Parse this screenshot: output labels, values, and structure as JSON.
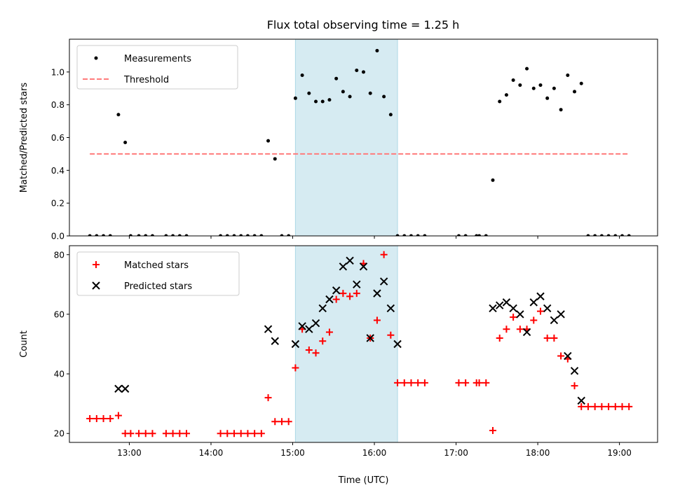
{
  "title": "Flux total observing time = 1.25 h",
  "colors": {
    "measurements": "#000000",
    "threshold": "#ff7b7b",
    "matched": "#ff0000",
    "predicted": "#000000",
    "highlight": "#add8e6"
  },
  "chart_data": [
    {
      "type": "scatter",
      "ylabel": "Matched/Predicted stars",
      "xlim": [
        "12:16",
        "19:28"
      ],
      "ylim": [
        0,
        1.2
      ],
      "y_ticks": [
        "0.0",
        "0.2",
        "0.4",
        "0.6",
        "0.8",
        "1.0"
      ],
      "grid": false,
      "legend_position": "upper left",
      "highlight_band": {
        "start": "15:02",
        "end": "16:17"
      },
      "series": [
        {
          "name": "Measurements",
          "marker": "dot",
          "points": [
            [
              "12:31",
              0.0
            ],
            [
              "12:36",
              0.0
            ],
            [
              "12:41",
              0.0
            ],
            [
              "12:46",
              0.0
            ],
            [
              "12:52",
              0.74
            ],
            [
              "12:57",
              0.57
            ],
            [
              "13:01",
              0.0
            ],
            [
              "13:07",
              0.0
            ],
            [
              "13:12",
              0.0
            ],
            [
              "13:17",
              0.0
            ],
            [
              "13:27",
              0.0
            ],
            [
              "13:32",
              0.0
            ],
            [
              "13:37",
              0.0
            ],
            [
              "13:42",
              0.0
            ],
            [
              "14:07",
              0.0
            ],
            [
              "14:12",
              0.0
            ],
            [
              "14:17",
              0.0
            ],
            [
              "14:22",
              0.0
            ],
            [
              "14:27",
              0.0
            ],
            [
              "14:32",
              0.0
            ],
            [
              "14:37",
              0.0
            ],
            [
              "14:42",
              0.58
            ],
            [
              "14:47",
              0.47
            ],
            [
              "14:52",
              0.0
            ],
            [
              "14:57",
              0.0
            ],
            [
              "15:02",
              0.84
            ],
            [
              "15:07",
              0.98
            ],
            [
              "15:12",
              0.87
            ],
            [
              "15:17",
              0.82
            ],
            [
              "15:22",
              0.82
            ],
            [
              "15:27",
              0.83
            ],
            [
              "15:32",
              0.96
            ],
            [
              "15:37",
              0.88
            ],
            [
              "15:42",
              0.85
            ],
            [
              "15:47",
              1.01
            ],
            [
              "15:52",
              1.0
            ],
            [
              "15:57",
              0.87
            ],
            [
              "16:02",
              1.13
            ],
            [
              "16:07",
              0.85
            ],
            [
              "16:12",
              0.74
            ],
            [
              "16:17",
              0.0
            ],
            [
              "16:22",
              0.0
            ],
            [
              "16:27",
              0.0
            ],
            [
              "16:32",
              0.0
            ],
            [
              "16:37",
              0.0
            ],
            [
              "17:02",
              0.0
            ],
            [
              "17:07",
              0.0
            ],
            [
              "17:15",
              0.0
            ],
            [
              "17:17",
              0.0
            ],
            [
              "17:22",
              0.0
            ],
            [
              "17:27",
              0.34
            ],
            [
              "17:32",
              0.82
            ],
            [
              "17:37",
              0.86
            ],
            [
              "17:42",
              0.95
            ],
            [
              "17:47",
              0.92
            ],
            [
              "17:52",
              1.02
            ],
            [
              "17:57",
              0.9
            ],
            [
              "18:02",
              0.92
            ],
            [
              "18:07",
              0.84
            ],
            [
              "18:12",
              0.9
            ],
            [
              "18:17",
              0.77
            ],
            [
              "18:22",
              0.98
            ],
            [
              "18:27",
              0.88
            ],
            [
              "18:32",
              0.93
            ],
            [
              "18:37",
              0.0
            ],
            [
              "18:42",
              0.0
            ],
            [
              "18:47",
              0.0
            ],
            [
              "18:52",
              0.0
            ],
            [
              "18:57",
              0.0
            ],
            [
              "19:02",
              0.0
            ],
            [
              "19:07",
              0.0
            ]
          ]
        },
        {
          "name": "Threshold",
          "marker": "dashed-line",
          "points": [
            [
              "12:31",
              0.5
            ],
            [
              "19:07",
              0.5
            ]
          ]
        }
      ]
    },
    {
      "type": "scatter",
      "ylabel": "Count",
      "xlabel": "Time (UTC)",
      "xlim": [
        "12:16",
        "19:28"
      ],
      "ylim": [
        17,
        83
      ],
      "y_ticks": [
        "20",
        "40",
        "60",
        "80"
      ],
      "x_ticks": [
        "13:00",
        "14:00",
        "15:00",
        "16:00",
        "17:00",
        "18:00",
        "19:00"
      ],
      "grid": false,
      "legend_position": "upper left",
      "highlight_band": {
        "start": "15:02",
        "end": "16:17"
      },
      "series": [
        {
          "name": "Matched stars",
          "marker": "plus",
          "points": [
            [
              "12:31",
              25
            ],
            [
              "12:36",
              25
            ],
            [
              "12:41",
              25
            ],
            [
              "12:46",
              25
            ],
            [
              "12:52",
              26
            ],
            [
              "12:57",
              20
            ],
            [
              "13:01",
              20
            ],
            [
              "13:07",
              20
            ],
            [
              "13:12",
              20
            ],
            [
              "13:17",
              20
            ],
            [
              "13:27",
              20
            ],
            [
              "13:32",
              20
            ],
            [
              "13:37",
              20
            ],
            [
              "13:42",
              20
            ],
            [
              "14:07",
              20
            ],
            [
              "14:12",
              20
            ],
            [
              "14:17",
              20
            ],
            [
              "14:22",
              20
            ],
            [
              "14:27",
              20
            ],
            [
              "14:32",
              20
            ],
            [
              "14:37",
              20
            ],
            [
              "14:42",
              32
            ],
            [
              "14:47",
              24
            ],
            [
              "14:52",
              24
            ],
            [
              "14:57",
              24
            ],
            [
              "15:02",
              42
            ],
            [
              "15:07",
              55
            ],
            [
              "15:12",
              48
            ],
            [
              "15:17",
              47
            ],
            [
              "15:22",
              51
            ],
            [
              "15:27",
              54
            ],
            [
              "15:32",
              65
            ],
            [
              "15:37",
              67
            ],
            [
              "15:42",
              66
            ],
            [
              "15:47",
              67
            ],
            [
              "15:52",
              77
            ],
            [
              "15:57",
              52
            ],
            [
              "16:02",
              58
            ],
            [
              "16:07",
              80
            ],
            [
              "16:12",
              53
            ],
            [
              "16:17",
              37
            ],
            [
              "16:22",
              37
            ],
            [
              "16:27",
              37
            ],
            [
              "16:32",
              37
            ],
            [
              "16:37",
              37
            ],
            [
              "17:02",
              37
            ],
            [
              "17:07",
              37
            ],
            [
              "17:15",
              37
            ],
            [
              "17:17",
              37
            ],
            [
              "17:22",
              37
            ],
            [
              "17:27",
              21
            ],
            [
              "17:32",
              52
            ],
            [
              "17:37",
              55
            ],
            [
              "17:42",
              59
            ],
            [
              "17:47",
              55
            ],
            [
              "17:52",
              55
            ],
            [
              "17:57",
              58
            ],
            [
              "18:02",
              61
            ],
            [
              "18:07",
              52
            ],
            [
              "18:12",
              52
            ],
            [
              "18:17",
              46
            ],
            [
              "18:22",
              45
            ],
            [
              "18:27",
              36
            ],
            [
              "18:32",
              29
            ],
            [
              "18:37",
              29
            ],
            [
              "18:42",
              29
            ],
            [
              "18:47",
              29
            ],
            [
              "18:52",
              29
            ],
            [
              "18:57",
              29
            ],
            [
              "19:02",
              29
            ],
            [
              "19:07",
              29
            ]
          ]
        },
        {
          "name": "Predicted stars",
          "marker": "x",
          "points": [
            [
              "12:52",
              35
            ],
            [
              "12:57",
              35
            ],
            [
              "14:42",
              55
            ],
            [
              "14:47",
              51
            ],
            [
              "15:02",
              50
            ],
            [
              "15:07",
              56
            ],
            [
              "15:12",
              55
            ],
            [
              "15:17",
              57
            ],
            [
              "15:22",
              62
            ],
            [
              "15:27",
              65
            ],
            [
              "15:32",
              68
            ],
            [
              "15:37",
              76
            ],
            [
              "15:42",
              78
            ],
            [
              "15:47",
              70
            ],
            [
              "15:52",
              76
            ],
            [
              "15:57",
              52
            ],
            [
              "16:02",
              67
            ],
            [
              "16:07",
              71
            ],
            [
              "16:12",
              62
            ],
            [
              "16:17",
              50
            ],
            [
              "17:27",
              62
            ],
            [
              "17:32",
              63
            ],
            [
              "17:37",
              64
            ],
            [
              "17:42",
              62
            ],
            [
              "17:47",
              60
            ],
            [
              "17:52",
              54
            ],
            [
              "17:57",
              64
            ],
            [
              "18:02",
              66
            ],
            [
              "18:07",
              62
            ],
            [
              "18:12",
              58
            ],
            [
              "18:17",
              60
            ],
            [
              "18:22",
              46
            ],
            [
              "18:27",
              41
            ],
            [
              "18:32",
              31
            ]
          ]
        }
      ]
    }
  ]
}
